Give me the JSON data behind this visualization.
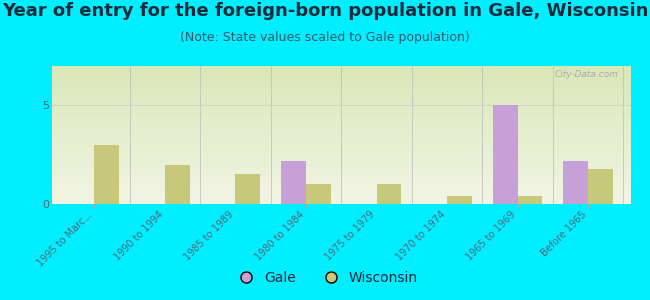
{
  "title": "Year of entry for the foreign-born population in Gale, Wisconsin",
  "subtitle": "(Note: State values scaled to Gale population)",
  "categories": [
    "1995 to Marc...",
    "1990 to 1994",
    "1985 to 1989",
    "1980 to 1984",
    "1975 to 1979",
    "1970 to 1974",
    "1965 to 1969",
    "Before 1965"
  ],
  "gale_values": [
    0,
    0,
    0,
    2.2,
    0,
    0,
    5.0,
    2.2
  ],
  "wisconsin_values": [
    3.0,
    2.0,
    1.5,
    1.0,
    1.0,
    0.4,
    0.4,
    1.8
  ],
  "gale_color": "#c8a0d8",
  "wisconsin_color": "#c8c87a",
  "ylim": [
    0,
    7
  ],
  "yticks": [
    0,
    5
  ],
  "background_color": "#00eeff",
  "title_color": "#1a2a3a",
  "subtitle_color": "#3a5a6a",
  "bar_width": 0.35,
  "title_fontsize": 13,
  "subtitle_fontsize": 9,
  "legend_fontsize": 10,
  "tick_label_color": "#4a6a7a",
  "watermark": "City-Data.com"
}
